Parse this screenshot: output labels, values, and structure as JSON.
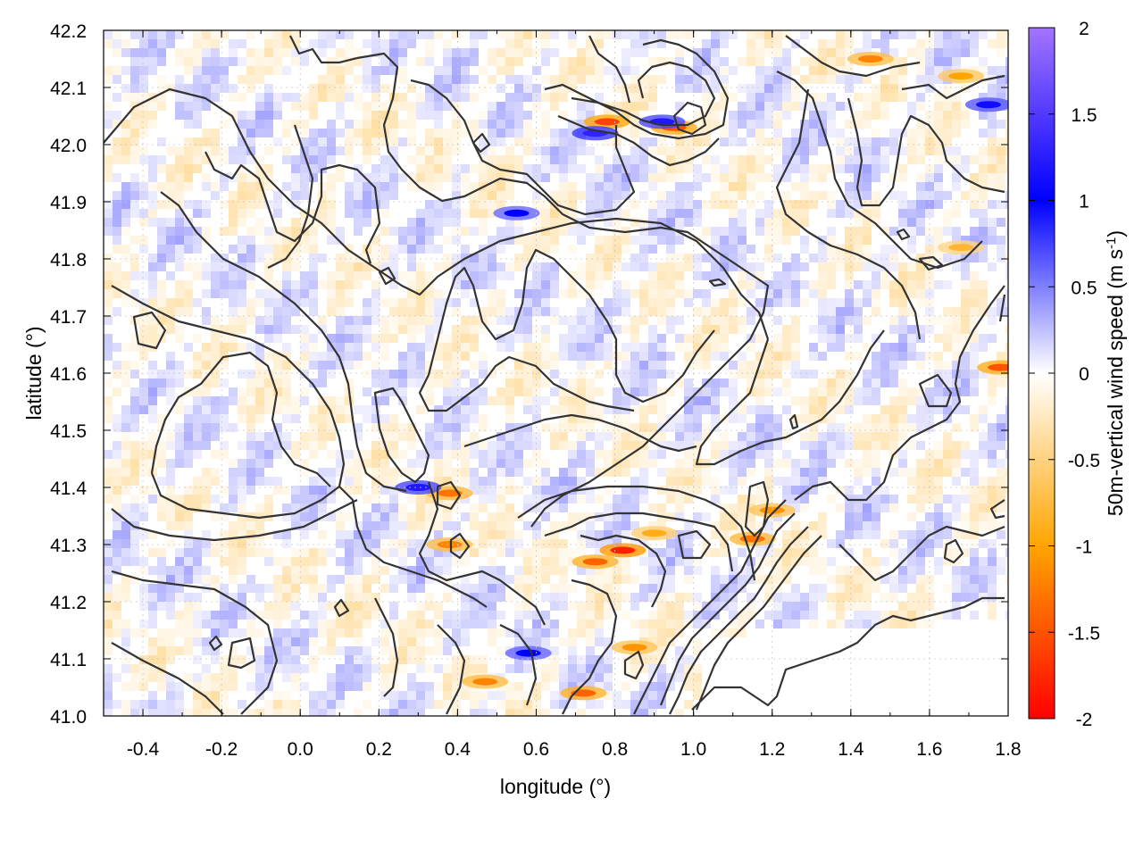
{
  "chart_data": {
    "type": "heatmap",
    "title": "",
    "xlabel": "longitude (°)",
    "ylabel": "latitude (°)",
    "colorbar_label": "50m-vertical wind speed",
    "colorbar_unit_prefix": "(m s",
    "colorbar_unit_exp": "-1",
    "colorbar_unit_suffix": ")",
    "xlim": [
      -0.5,
      1.8
    ],
    "ylim": [
      41.0,
      42.2
    ],
    "clim": [
      -2,
      2
    ],
    "x_ticks": [
      -0.4,
      -0.2,
      0.0,
      0.2,
      0.4,
      0.6,
      0.8,
      1.0,
      1.2,
      1.4,
      1.6,
      1.8
    ],
    "x_tick_labels": [
      "-0.4",
      "-0.2",
      "0.0",
      "0.2",
      "0.4",
      "0.6",
      "0.8",
      "1.0",
      "1.2",
      "1.4",
      "1.6",
      "1.8"
    ],
    "y_ticks": [
      41.0,
      41.1,
      41.2,
      41.3,
      41.4,
      41.5,
      41.6,
      41.7,
      41.8,
      41.9,
      42.0,
      42.1,
      42.2
    ],
    "y_tick_labels": [
      "41.0",
      "41.1",
      "41.2",
      "41.3",
      "41.4",
      "41.5",
      "41.6",
      "41.7",
      "41.8",
      "41.9",
      "42.0",
      "42.1",
      "42.2"
    ],
    "colorbar_ticks": [
      2,
      1.5,
      1,
      0.5,
      0,
      -0.5,
      -1,
      -1.5,
      -2
    ],
    "colorbar_tick_labels": [
      "2",
      "1.5",
      "1",
      "0.5",
      "0",
      "-0.5",
      "-1",
      "-1.5",
      "-2"
    ],
    "colormap": [
      "#ff0000",
      "#ffa500",
      "#ffffff",
      "#0000ff",
      "#a374ff"
    ],
    "grid": true,
    "contour_color": "#333333",
    "hotspots": [
      {
        "x": 0.78,
        "y": 42.04,
        "value": -1.6
      },
      {
        "x": 0.75,
        "y": 42.02,
        "value": 1.3
      },
      {
        "x": 0.95,
        "y": 42.03,
        "value": -1.5
      },
      {
        "x": 0.92,
        "y": 42.04,
        "value": 1.2
      },
      {
        "x": 1.45,
        "y": 42.15,
        "value": -1.2
      },
      {
        "x": 1.68,
        "y": 42.12,
        "value": -1.0
      },
      {
        "x": 1.75,
        "y": 42.07,
        "value": 1.1
      },
      {
        "x": 1.78,
        "y": 41.61,
        "value": -1.5
      },
      {
        "x": 0.82,
        "y": 41.29,
        "value": -1.8
      },
      {
        "x": 0.75,
        "y": 41.27,
        "value": -1.4
      },
      {
        "x": 0.38,
        "y": 41.39,
        "value": -1.3
      },
      {
        "x": 0.38,
        "y": 41.3,
        "value": -1.2
      },
      {
        "x": 0.3,
        "y": 41.4,
        "value": 1.2
      },
      {
        "x": 0.47,
        "y": 41.06,
        "value": -1.2
      },
      {
        "x": 0.72,
        "y": 41.04,
        "value": -1.4
      },
      {
        "x": 0.58,
        "y": 41.11,
        "value": 1.0
      },
      {
        "x": 0.85,
        "y": 41.12,
        "value": -1.1
      },
      {
        "x": 1.2,
        "y": 41.36,
        "value": -1.1
      },
      {
        "x": 1.15,
        "y": 41.31,
        "value": -1.3
      },
      {
        "x": 0.9,
        "y": 41.32,
        "value": -0.9
      },
      {
        "x": 0.55,
        "y": 41.88,
        "value": 1.0
      },
      {
        "x": 1.68,
        "y": 41.82,
        "value": -0.8
      }
    ]
  }
}
